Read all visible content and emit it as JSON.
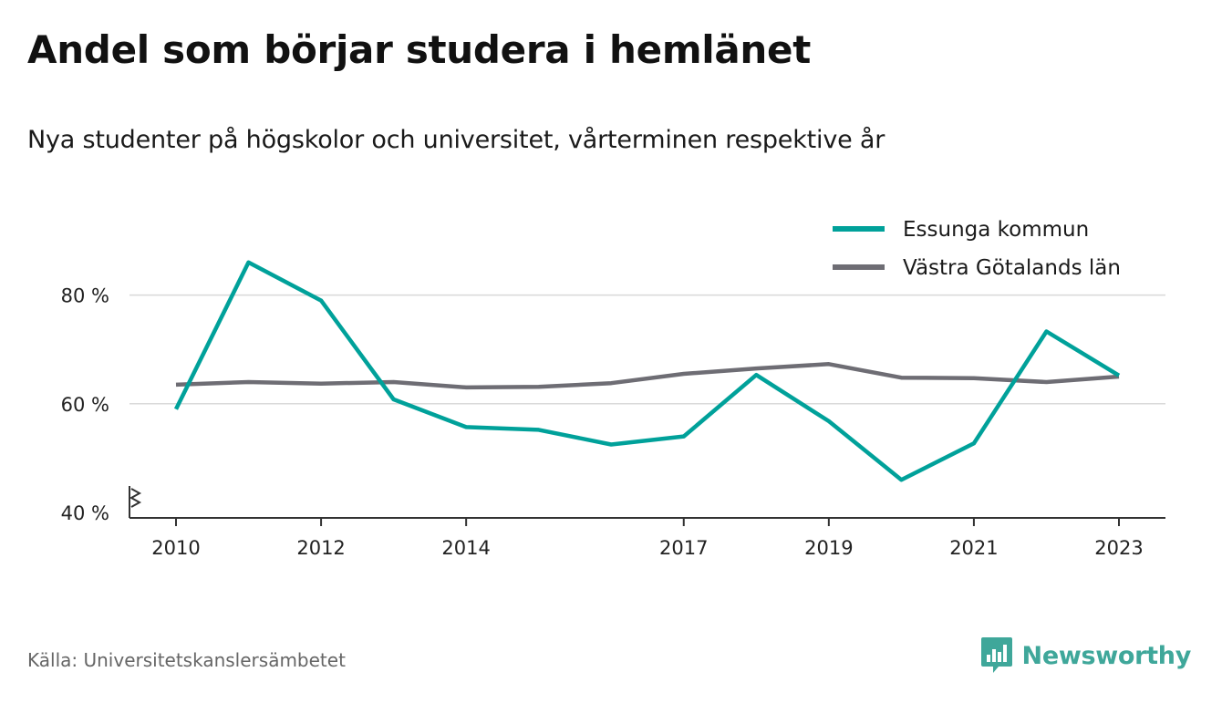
{
  "title": "Andel som börjar studera i hemlänet",
  "subtitle": "Nya studenter på högskolor och universitet, vårterminen respektive år",
  "source": "Källa: Universitetskanslersämbetet",
  "brand": "Newsworthy",
  "colors": {
    "series_1": "#00a19a",
    "series_2": "#6e6d74",
    "grid": "#d9d9d9",
    "axis": "#333333",
    "brand": "#3fa79a"
  },
  "chart_data": {
    "type": "line",
    "x": [
      2010,
      2011,
      2012,
      2013,
      2014,
      2015,
      2016,
      2017,
      2018,
      2019,
      2020,
      2021,
      2022,
      2023
    ],
    "x_tick_labels": [
      "2010",
      "2012",
      "2014",
      "2017",
      "2019",
      "2021",
      "2023"
    ],
    "y_tick_labels": [
      "40 %",
      "60 %",
      "80 %"
    ],
    "y_ticks": [
      40,
      60,
      80
    ],
    "ylim": [
      40,
      90
    ],
    "grid": true,
    "y_axis_break": true,
    "legend_position": "top-right",
    "series": [
      {
        "name": "Essunga kommun",
        "values": [
          59.0,
          86.0,
          79.0,
          60.8,
          55.7,
          55.2,
          52.5,
          54.0,
          65.3,
          56.8,
          46.0,
          52.7,
          73.3,
          65.2
        ]
      },
      {
        "name": "Västra Götalands län",
        "values": [
          63.5,
          64.0,
          63.7,
          64.0,
          63.0,
          63.1,
          63.8,
          65.5,
          66.5,
          67.3,
          64.8,
          64.7,
          64.0,
          65.0
        ]
      }
    ]
  }
}
